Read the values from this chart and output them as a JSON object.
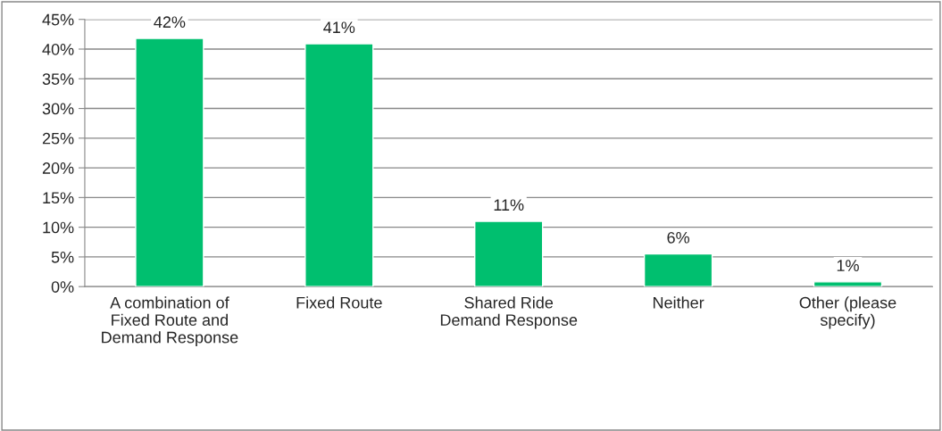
{
  "chart_data": {
    "type": "bar",
    "categories": [
      "A combination of Fixed Route and Demand Response",
      "Fixed Route",
      "Shared Ride Demand Response",
      "Neither",
      "Other (please specify)"
    ],
    "values": [
      41.8,
      40.9,
      11.0,
      5.5,
      0.8
    ],
    "value_labels": [
      "42%",
      "41%",
      "11%",
      "6%",
      "1%"
    ],
    "color": "#00bf6f",
    "ylim": [
      0,
      45
    ],
    "yticks": [
      {
        "value": 0,
        "label": "0%"
      },
      {
        "value": 5,
        "label": "5%"
      },
      {
        "value": 10,
        "label": "10%"
      },
      {
        "value": 15,
        "label": "15%"
      },
      {
        "value": 20,
        "label": "20%"
      },
      {
        "value": 25,
        "label": "25%"
      },
      {
        "value": 30,
        "label": "30%"
      },
      {
        "value": 35,
        "label": "35%"
      },
      {
        "value": 40,
        "label": "40%"
      },
      {
        "value": 45,
        "label": "45%"
      }
    ],
    "grid": "y"
  }
}
